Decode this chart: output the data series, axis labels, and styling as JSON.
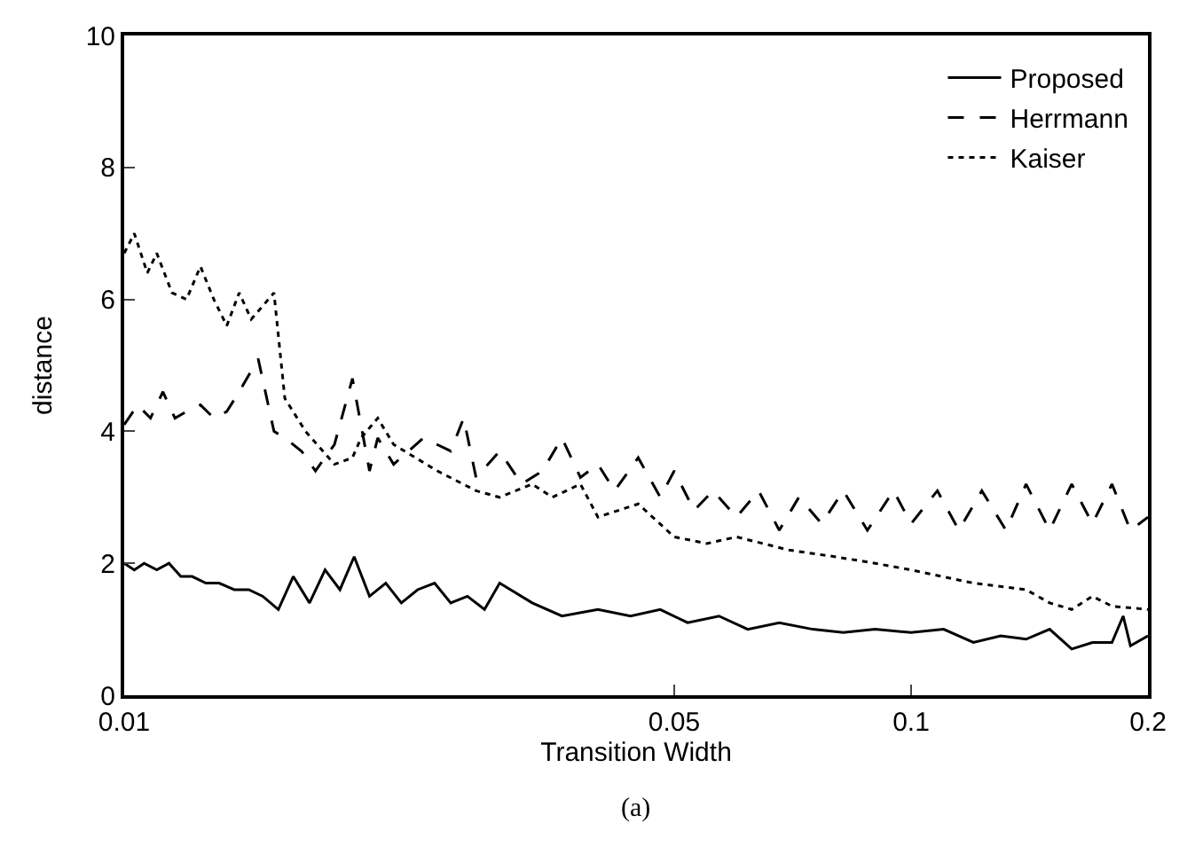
{
  "chart_data": {
    "type": "line",
    "xlabel": "Transition Width",
    "ylabel": "distance",
    "log": "x",
    "xlim": [
      0.01,
      0.2
    ],
    "xticks": [
      0.01,
      0.05,
      0.1,
      0.2
    ],
    "ylim": [
      0,
      10
    ],
    "yticks": [
      0,
      2,
      4,
      6,
      8,
      10
    ],
    "legend": "top right",
    "annotations": [
      "(a)"
    ],
    "series": [
      {
        "name": "Proposed",
        "color": "#000000",
        "line_style": "solid",
        "x": [
          0.01,
          0.0103,
          0.0106,
          0.011,
          0.0114,
          0.0118,
          0.0122,
          0.0127,
          0.0132,
          0.0138,
          0.0144,
          0.015,
          0.0157,
          0.0164,
          0.0172,
          0.018,
          0.0188,
          0.0196,
          0.0205,
          0.0215,
          0.0225,
          0.0236,
          0.0248,
          0.026,
          0.0273,
          0.0287,
          0.03,
          0.033,
          0.036,
          0.04,
          0.044,
          0.048,
          0.052,
          0.057,
          0.062,
          0.068,
          0.075,
          0.082,
          0.09,
          0.1,
          0.11,
          0.12,
          0.13,
          0.14,
          0.15,
          0.16,
          0.17,
          0.18,
          0.186,
          0.19,
          0.2
        ],
        "values": [
          2.0,
          1.9,
          2.0,
          1.9,
          2.0,
          1.8,
          1.8,
          1.7,
          1.7,
          1.6,
          1.6,
          1.5,
          1.3,
          1.8,
          1.4,
          1.9,
          1.6,
          2.1,
          1.5,
          1.7,
          1.4,
          1.6,
          1.7,
          1.4,
          1.5,
          1.3,
          1.7,
          1.4,
          1.2,
          1.3,
          1.2,
          1.3,
          1.1,
          1.2,
          1.0,
          1.1,
          1.0,
          0.95,
          1.0,
          0.95,
          1.0,
          0.8,
          0.9,
          0.85,
          1.0,
          0.7,
          0.8,
          0.8,
          1.2,
          0.75,
          0.9
        ]
      },
      {
        "name": "Herrmann",
        "color": "#000000",
        "line_style": "dashed",
        "x": [
          0.01,
          0.0104,
          0.0108,
          0.0112,
          0.0116,
          0.012,
          0.0125,
          0.013,
          0.0135,
          0.014,
          0.0148,
          0.0155,
          0.016,
          0.0168,
          0.0175,
          0.0185,
          0.0195,
          0.0205,
          0.021,
          0.022,
          0.024,
          0.026,
          0.027,
          0.028,
          0.03,
          0.032,
          0.034,
          0.036,
          0.038,
          0.04,
          0.042,
          0.045,
          0.048,
          0.05,
          0.053,
          0.056,
          0.06,
          0.064,
          0.068,
          0.072,
          0.077,
          0.082,
          0.088,
          0.095,
          0.1,
          0.108,
          0.115,
          0.123,
          0.132,
          0.14,
          0.15,
          0.16,
          0.17,
          0.18,
          0.19,
          0.2
        ],
        "values": [
          4.1,
          4.4,
          4.2,
          4.6,
          4.2,
          4.3,
          4.4,
          4.2,
          4.3,
          4.6,
          5.1,
          4.0,
          3.9,
          3.7,
          3.4,
          3.8,
          4.8,
          3.4,
          3.9,
          3.5,
          3.9,
          3.7,
          4.2,
          3.3,
          3.7,
          3.2,
          3.4,
          3.9,
          3.3,
          3.5,
          3.1,
          3.6,
          3.0,
          3.4,
          2.8,
          3.1,
          2.7,
          3.1,
          2.5,
          3.0,
          2.6,
          3.1,
          2.5,
          3.1,
          2.6,
          3.1,
          2.5,
          3.1,
          2.5,
          3.2,
          2.5,
          3.2,
          2.6,
          3.2,
          2.5,
          2.7
        ]
      },
      {
        "name": "Kaiser",
        "color": "#000000",
        "line_style": "dotted",
        "x": [
          0.01,
          0.0103,
          0.0107,
          0.011,
          0.0115,
          0.012,
          0.0125,
          0.013,
          0.0135,
          0.014,
          0.0145,
          0.015,
          0.0155,
          0.016,
          0.017,
          0.0185,
          0.0195,
          0.02,
          0.021,
          0.022,
          0.025,
          0.028,
          0.03,
          0.033,
          0.035,
          0.038,
          0.04,
          0.045,
          0.05,
          0.055,
          0.06,
          0.07,
          0.08,
          0.09,
          0.1,
          0.12,
          0.14,
          0.15,
          0.16,
          0.17,
          0.18,
          0.2
        ],
        "values": [
          6.7,
          7.0,
          6.4,
          6.7,
          6.1,
          6.0,
          6.5,
          6.0,
          5.6,
          6.1,
          5.7,
          5.9,
          6.1,
          4.5,
          4.0,
          3.5,
          3.6,
          3.9,
          4.2,
          3.8,
          3.4,
          3.1,
          3.0,
          3.2,
          3.0,
          3.2,
          2.7,
          2.9,
          2.4,
          2.3,
          2.4,
          2.2,
          2.1,
          2.0,
          1.9,
          1.7,
          1.6,
          1.4,
          1.3,
          1.5,
          1.35,
          1.3
        ]
      }
    ]
  }
}
